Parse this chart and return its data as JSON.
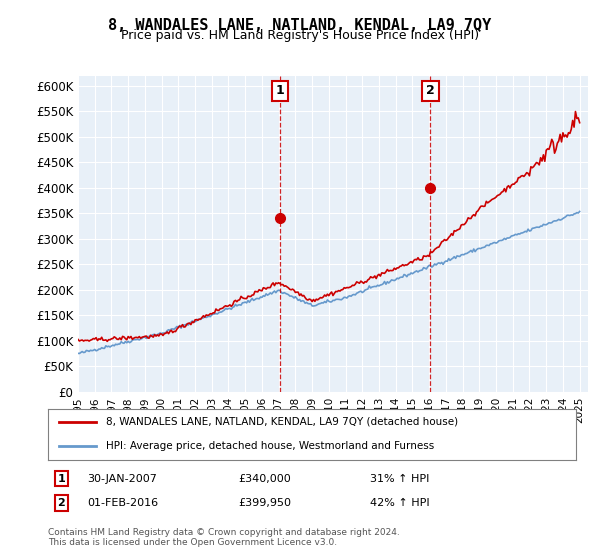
{
  "title": "8, WANDALES LANE, NATLAND, KENDAL, LA9 7QY",
  "subtitle": "Price paid vs. HM Land Registry's House Price Index (HPI)",
  "background_color": "#ffffff",
  "plot_bg_color": "#e8f0f8",
  "ylim": [
    0,
    620000
  ],
  "yticks": [
    0,
    50000,
    100000,
    150000,
    200000,
    250000,
    300000,
    350000,
    400000,
    450000,
    500000,
    550000,
    600000
  ],
  "ytick_labels": [
    "£0",
    "£50K",
    "£100K",
    "£150K",
    "£200K",
    "£250K",
    "£300K",
    "£350K",
    "£400K",
    "£450K",
    "£500K",
    "£550K",
    "£600K"
  ],
  "sale1_date_idx": 12.08,
  "sale1_price": 340000,
  "sale1_date_str": "30-JAN-2007",
  "sale1_hpi_pct": "31% ↑ HPI",
  "sale2_date_idx": 21.08,
  "sale2_price": 399950,
  "sale2_date_str": "01-FEB-2016",
  "sale2_hpi_pct": "42% ↑ HPI",
  "legend_label_red": "8, WANDALES LANE, NATLAND, KENDAL, LA9 7QY (detached house)",
  "legend_label_blue": "HPI: Average price, detached house, Westmorland and Furness",
  "footer": "Contains HM Land Registry data © Crown copyright and database right 2024.\nThis data is licensed under the Open Government Licence v3.0.",
  "red_color": "#cc0000",
  "blue_color": "#6699cc"
}
